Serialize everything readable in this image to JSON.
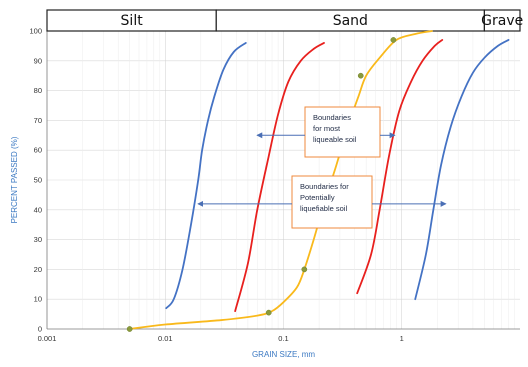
{
  "chart_data": {
    "type": "line",
    "xscale": "log",
    "xlim": [
      0.001,
      10
    ],
    "ylim": [
      0,
      100
    ],
    "xlabel": "GRAIN SIZE, mm",
    "ylabel": "PERCENT PASSED (%)",
    "x_ticks": [
      "0.001",
      "0.01",
      "0.1",
      "1"
    ],
    "y_ticks": [
      "0",
      "10",
      "20",
      "30",
      "40",
      "50",
      "60",
      "70",
      "80",
      "90",
      "100"
    ],
    "grid": true,
    "header_bands": [
      {
        "label": "Silt",
        "from": 0.001,
        "to": 0.027
      },
      {
        "label": "Sand",
        "from": 0.027,
        "to": 5.0
      },
      {
        "label": "Grave",
        "from": 5.0,
        "to": 10
      }
    ],
    "series": [
      {
        "color": "#4472c4",
        "points": [
          [
            0.0102,
            7
          ],
          [
            0.0118,
            10
          ],
          [
            0.014,
            20
          ],
          [
            0.0165,
            35
          ],
          [
            0.019,
            50
          ],
          [
            0.0205,
            60
          ],
          [
            0.023,
            70
          ],
          [
            0.026,
            78
          ],
          [
            0.031,
            87
          ],
          [
            0.038,
            93
          ],
          [
            0.048,
            96
          ]
        ]
      },
      {
        "color": "#e8201e",
        "points": [
          [
            0.039,
            6
          ],
          [
            0.05,
            22
          ],
          [
            0.06,
            40
          ],
          [
            0.075,
            58
          ],
          [
            0.09,
            72
          ],
          [
            0.11,
            83
          ],
          [
            0.14,
            90
          ],
          [
            0.18,
            94
          ],
          [
            0.22,
            96
          ]
        ]
      },
      {
        "color": "#e8201e",
        "points": [
          [
            0.42,
            12
          ],
          [
            0.55,
            25
          ],
          [
            0.65,
            40
          ],
          [
            0.78,
            58
          ],
          [
            0.95,
            73
          ],
          [
            1.2,
            83
          ],
          [
            1.5,
            90
          ],
          [
            1.9,
            95
          ],
          [
            2.2,
            97
          ]
        ]
      },
      {
        "color": "#4472c4",
        "points": [
          [
            1.3,
            10
          ],
          [
            1.6,
            25
          ],
          [
            1.85,
            40
          ],
          [
            2.15,
            55
          ],
          [
            2.6,
            68
          ],
          [
            3.2,
            78
          ],
          [
            4.0,
            86
          ],
          [
            5.0,
            91
          ],
          [
            6.5,
            95
          ],
          [
            8.0,
            97
          ]
        ]
      },
      {
        "color": "#f9b91b",
        "points": [
          [
            0.005,
            0
          ],
          [
            0.01,
            1.5
          ],
          [
            0.03,
            3
          ],
          [
            0.06,
            4.5
          ],
          [
            0.08,
            6
          ],
          [
            0.1,
            9
          ],
          [
            0.13,
            14
          ],
          [
            0.15,
            20
          ],
          [
            0.18,
            30
          ],
          [
            0.22,
            42
          ],
          [
            0.28,
            55
          ],
          [
            0.35,
            68
          ],
          [
            0.43,
            78
          ],
          [
            0.5,
            85
          ],
          [
            0.65,
            91
          ],
          [
            0.9,
            97
          ],
          [
            1.3,
            99
          ],
          [
            1.8,
            100
          ]
        ]
      }
    ],
    "markers": [
      {
        "x": 0.005,
        "y": 0
      },
      {
        "x": 0.075,
        "y": 5.5
      },
      {
        "x": 0.15,
        "y": 20
      },
      {
        "x": 0.45,
        "y": 85
      },
      {
        "x": 0.85,
        "y": 97
      }
    ],
    "annotations": [
      {
        "lines": [
          "Boundaries",
          "for most",
          "liqueable soil"
        ],
        "arrow_from": 0.06,
        "arrow_to": 0.87,
        "arrow_y": 65
      },
      {
        "lines": [
          "Boundaries for",
          "Potentially",
          "liquefiable soil"
        ],
        "arrow_from": 0.019,
        "arrow_to": 2.35,
        "arrow_y": 42
      }
    ]
  }
}
